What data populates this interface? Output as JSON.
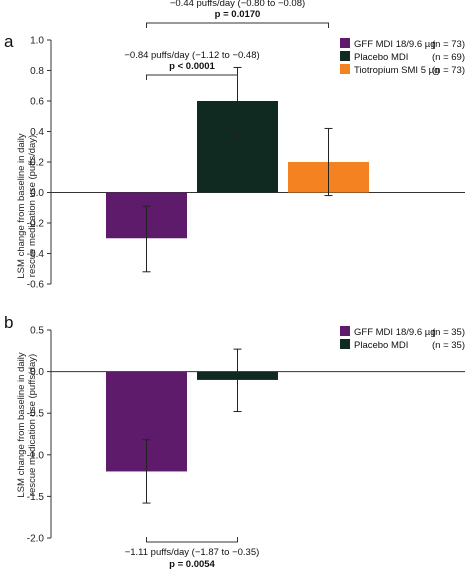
{
  "chart_data": [
    {
      "type": "bar",
      "panel": "a",
      "ylabel_lines": [
        "LSM change from baseline in daily",
        "rescue medication use (puffs/day)"
      ],
      "ylim": [
        -0.6,
        1.0
      ],
      "yticks": [
        "1.0",
        "0.8",
        "0.6",
        "0.4",
        "0.2",
        "0.0",
        "-0.2",
        "-0.4",
        "-0.6"
      ],
      "ytick_values": [
        1.0,
        0.8,
        0.6,
        0.4,
        0.2,
        0.0,
        -0.2,
        -0.4,
        -0.6
      ],
      "legend_placement": "top-right",
      "series": [
        {
          "name": "GFF MDI 18/9.6 µg",
          "n_label": "(n = 73)",
          "value": -0.3,
          "ci": [
            -0.52,
            -0.09
          ],
          "color": "#5e1a6b"
        },
        {
          "name": "Placebo MDI",
          "n_label": "(n = 69)",
          "value": 0.6,
          "ci": [
            0.38,
            0.82
          ],
          "color": "#102a22"
        },
        {
          "name": "Tiotropium SMI 5 µg",
          "n_label": "(n = 73)",
          "value": 0.2,
          "ci": [
            -0.02,
            0.42
          ],
          "color": "#f58220"
        }
      ],
      "comparisons": [
        {
          "from": 0,
          "to": 2,
          "line1": "−0.44 puffs/day (−0.80 to −0.08)",
          "line2": "p = 0.0170"
        },
        {
          "from": 0,
          "to": 1,
          "line1": "−0.84 puffs/day (−1.12 to −0.48)",
          "line2": "p < 0.0001"
        }
      ]
    },
    {
      "type": "bar",
      "panel": "b",
      "ylabel_lines": [
        "LSM change from baseline in daily",
        "rescue medication use (puffs/day)"
      ],
      "ylim": [
        -2.0,
        0.5
      ],
      "yticks": [
        "0.5",
        "0.0",
        "-0.5",
        "-1.0",
        "-1.5",
        "-2.0"
      ],
      "ytick_values": [
        0.5,
        0.0,
        -0.5,
        -1.0,
        -1.5,
        -2.0
      ],
      "legend_placement": "top-right",
      "series": [
        {
          "name": "GFF MDI 18/9.6 µg",
          "n_label": "(n = 35)",
          "value": -1.2,
          "ci": [
            -1.58,
            -0.82
          ],
          "color": "#5e1a6b"
        },
        {
          "name": "Placebo MDI",
          "n_label": "(n = 35)",
          "value": -0.1,
          "ci": [
            -0.48,
            0.27
          ],
          "color": "#102a22"
        }
      ],
      "comparisons": [
        {
          "from": 0,
          "to": 1,
          "line1": "−1.11 puffs/day (−1.87 to −0.35)",
          "line2": "p = 0.0054"
        }
      ]
    }
  ]
}
